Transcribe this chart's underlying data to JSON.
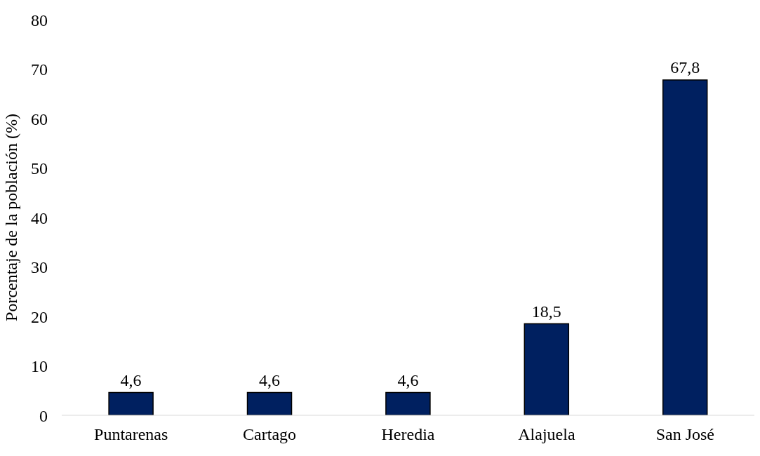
{
  "chart_data": {
    "type": "bar",
    "ylabel": "Porcentaje de la población (%)",
    "categories": [
      "Puntarenas",
      "Cartago",
      "Heredia",
      "Alajuela",
      "San José"
    ],
    "values": [
      4.6,
      4.6,
      4.6,
      18.5,
      67.8
    ],
    "value_labels": [
      "4,6",
      "4,6",
      "4,6",
      "18,5",
      "67,8"
    ],
    "color": "#002060",
    "ylim": [
      0,
      80
    ],
    "yticks": [
      0,
      10,
      20,
      30,
      40,
      50,
      60,
      70,
      80
    ],
    "grid": false
  }
}
